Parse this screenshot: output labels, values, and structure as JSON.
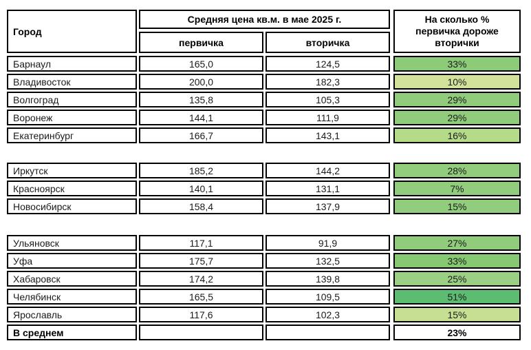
{
  "header": {
    "city": "Город",
    "avg_price": "Средняя цена кв.м. в мае 2025 г.",
    "primary": "первичка",
    "secondary": "вторичка",
    "pct_lines": [
      "На сколько %",
      "первичка дороже",
      "вторички"
    ]
  },
  "colors": {
    "border": "#000000",
    "background": "#ffffff"
  },
  "chart_data": {
    "type": "table",
    "title": "Средняя цена кв.м. в мае 2025 г.",
    "columns": [
      "Город",
      "первичка",
      "вторичка",
      "На сколько % первичка дороже вторички"
    ],
    "rows": [
      {
        "city": "Барнаул",
        "primary": "165,0",
        "secondary": "124,5",
        "pct": "33%",
        "color": "#8ccb78"
      },
      {
        "city": "Владивосток",
        "primary": "200,0",
        "secondary": "182,3",
        "pct": "10%",
        "color": "#d2e29b"
      },
      {
        "city": "Волгоград",
        "primary": "135,8",
        "secondary": "105,3",
        "pct": "29%",
        "color": "#90cc7b"
      },
      {
        "city": "Воронеж",
        "primary": "144,1",
        "secondary": "111,9",
        "pct": "29%",
        "color": "#90cc7b"
      },
      {
        "city": "Екатеринбург",
        "primary": "166,7",
        "secondary": "143,1",
        "pct": "16%",
        "color": "#b5da88"
      },
      {
        "city": "Иркутск",
        "primary": "185,2",
        "secondary": "144,2",
        "pct": "28%",
        "color": "#92cd7d"
      },
      {
        "city": "Красноярск",
        "primary": "140,1",
        "secondary": "131,1",
        "pct": "7%",
        "color": "#92cd7d"
      },
      {
        "city": "Новосибирск",
        "primary": "158,4",
        "secondary": "137,9",
        "pct": "15%",
        "color": "#92cd7d"
      },
      {
        "city": "Ульяновск",
        "primary": "117,1",
        "secondary": "91,9",
        "pct": "27%",
        "color": "#90cc7b"
      },
      {
        "city": "Уфа",
        "primary": "175,7",
        "secondary": "132,5",
        "pct": "33%",
        "color": "#87c972"
      },
      {
        "city": "Хабаровск",
        "primary": "174,2",
        "secondary": "139,8",
        "pct": "25%",
        "color": "#9bd084"
      },
      {
        "city": "Челябинск",
        "primary": "165,5",
        "secondary": "109,5",
        "pct": "51%",
        "color": "#5cbd72"
      },
      {
        "city": "Ярославль",
        "primary": "117,6",
        "secondary": "102,3",
        "pct": "15%",
        "color": "#c6df92"
      },
      {
        "city": "В среднем",
        "primary": "",
        "secondary": "",
        "pct": "23%",
        "color": "#ffffff"
      }
    ]
  }
}
